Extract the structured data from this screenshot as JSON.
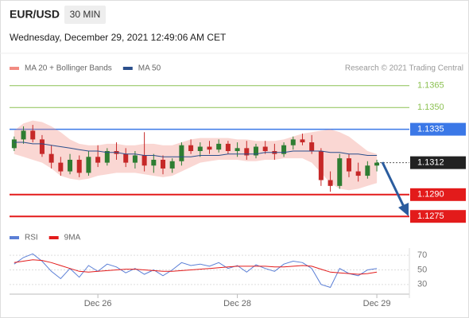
{
  "header": {
    "symbol": "EUR/USD",
    "timeframe": "30 MIN",
    "datetime": "Wednesday, December 29, 2021 12:49:06 AM CET",
    "source": "Research © 2021 Trading Central"
  },
  "chart_data": [
    {
      "type": "candlestick",
      "up_color": "#2e7d32",
      "down_color": "#c62828",
      "ylim": [
        1.1268,
        1.1372
      ],
      "xlim": [
        -0.5,
        42.5
      ],
      "open": [
        1.1322,
        1.1328,
        1.1334,
        1.1328,
        1.1318,
        1.1312,
        1.1306,
        1.1314,
        1.1305,
        1.1316,
        1.1312,
        1.132,
        1.1318,
        1.1312,
        1.1317,
        1.131,
        1.1314,
        1.1308,
        1.1313,
        1.1324,
        1.132,
        1.1323,
        1.1321,
        1.1325,
        1.132,
        1.1322,
        1.1317,
        1.1323,
        1.132,
        1.1318,
        1.1324,
        1.1328,
        1.1326,
        1.132,
        1.13,
        1.1296,
        1.1315,
        1.1306,
        1.1303,
        1.131
      ],
      "high": [
        1.133,
        1.1337,
        1.1338,
        1.1331,
        1.1324,
        1.1316,
        1.1318,
        1.1317,
        1.132,
        1.1324,
        1.1322,
        1.1326,
        1.1322,
        1.132,
        1.1333,
        1.1318,
        1.1317,
        1.1315,
        1.1326,
        1.1328,
        1.1326,
        1.1327,
        1.1328,
        1.1327,
        1.1326,
        1.1327,
        1.1325,
        1.1327,
        1.1325,
        1.1326,
        1.133,
        1.1332,
        1.1331,
        1.1322,
        1.1306,
        1.1318,
        1.1318,
        1.1312,
        1.1313,
        1.1314
      ],
      "low": [
        1.132,
        1.1325,
        1.1326,
        1.1316,
        1.1308,
        1.1303,
        1.1304,
        1.1302,
        1.1303,
        1.1309,
        1.131,
        1.1314,
        1.1309,
        1.1308,
        1.1306,
        1.1305,
        1.1304,
        1.1305,
        1.131,
        1.1318,
        1.1316,
        1.1318,
        1.1319,
        1.1318,
        1.1316,
        1.1314,
        1.1315,
        1.1318,
        1.1314,
        1.1316,
        1.1321,
        1.1324,
        1.1318,
        1.1296,
        1.1292,
        1.1294,
        1.1302,
        1.1299,
        1.1301,
        1.1306
      ],
      "close": [
        1.1328,
        1.1334,
        1.1328,
        1.1318,
        1.1312,
        1.1306,
        1.1314,
        1.1305,
        1.1316,
        1.1312,
        1.132,
        1.1318,
        1.1312,
        1.1317,
        1.131,
        1.1314,
        1.1308,
        1.1313,
        1.1324,
        1.132,
        1.1323,
        1.1321,
        1.1325,
        1.132,
        1.1322,
        1.1317,
        1.1323,
        1.132,
        1.1318,
        1.1324,
        1.1328,
        1.1326,
        1.132,
        1.13,
        1.1296,
        1.1315,
        1.1306,
        1.1303,
        1.131,
        1.1312
      ],
      "series": [
        {
          "name": "MA 20 + Bollinger Bands",
          "color": "#f28b82",
          "upper": [
            1.1334,
            1.1339,
            1.1341,
            1.134,
            1.1337,
            1.1333,
            1.1328,
            1.1325,
            1.1324,
            1.1324,
            1.1325,
            1.1325,
            1.1324,
            1.1324,
            1.1325,
            1.1325,
            1.1324,
            1.1324,
            1.1326,
            1.1328,
            1.1329,
            1.1329,
            1.1329,
            1.1329,
            1.1328,
            1.1328,
            1.1327,
            1.1327,
            1.1327,
            1.1328,
            1.133,
            1.1332,
            1.1333,
            1.1334,
            1.1335,
            1.1333,
            1.133,
            1.1325,
            1.132,
            1.1318
          ],
          "lower": [
            1.1318,
            1.1316,
            1.1314,
            1.1312,
            1.1308,
            1.1303,
            1.1301,
            1.13,
            1.1301,
            1.1303,
            1.1304,
            1.1305,
            1.1305,
            1.1305,
            1.1304,
            1.1303,
            1.1302,
            1.1303,
            1.1306,
            1.1309,
            1.1312,
            1.1313,
            1.1314,
            1.1314,
            1.1314,
            1.1313,
            1.1313,
            1.1314,
            1.1314,
            1.1315,
            1.1315,
            1.1315,
            1.1312,
            1.1305,
            1.1298,
            1.1294,
            1.1293,
            1.1294,
            1.1296,
            1.1298
          ]
        },
        {
          "name": "MA 50",
          "color": "#2b4f8c",
          "values": [
            1.1326,
            1.1326,
            1.1325,
            1.1325,
            1.1324,
            1.1323,
            1.1322,
            1.1321,
            1.132,
            1.132,
            1.1319,
            1.1319,
            1.1318,
            1.1318,
            1.1317,
            1.1317,
            1.1316,
            1.1316,
            1.1316,
            1.1316,
            1.1317,
            1.1317,
            1.1317,
            1.1318,
            1.1318,
            1.1318,
            1.1318,
            1.1319,
            1.1319,
            1.1319,
            1.132,
            1.132,
            1.132,
            1.132,
            1.1319,
            1.1319,
            1.1318,
            1.1318,
            1.1317,
            1.1317
          ]
        }
      ],
      "levels": [
        {
          "value": 1.1365,
          "label": "1.1365",
          "color": "#8cc152",
          "style": "plain"
        },
        {
          "value": 1.135,
          "label": "1.1350",
          "color": "#8cc152",
          "style": "plain"
        },
        {
          "value": 1.1335,
          "label": "1.1335",
          "color": "#3b78e7",
          "style": "box"
        },
        {
          "value": 1.1312,
          "label": "1.1312",
          "color": "#222222",
          "style": "last"
        },
        {
          "value": 1.129,
          "label": "1.1290",
          "color": "#e31b1b",
          "style": "box"
        },
        {
          "value": 1.1275,
          "label": "1.1275",
          "color": "#e31b1b",
          "style": "box"
        }
      ]
    },
    {
      "type": "line",
      "ylim": [
        20,
        80
      ],
      "yticks": [
        70,
        50,
        30
      ],
      "xlim": [
        -0.5,
        42.5
      ],
      "xticks": [
        {
          "value": 9,
          "label": "Dec 26"
        },
        {
          "value": 24,
          "label": "Dec 28"
        },
        {
          "value": 39,
          "label": "Dec 29"
        }
      ],
      "series": [
        {
          "name": "RSI",
          "color": "#5b7fd6",
          "values": [
            58,
            67,
            72,
            62,
            48,
            38,
            52,
            40,
            56,
            48,
            58,
            54,
            46,
            52,
            44,
            50,
            42,
            50,
            60,
            56,
            58,
            55,
            60,
            52,
            56,
            47,
            57,
            52,
            48,
            58,
            62,
            60,
            52,
            30,
            26,
            52,
            45,
            42,
            50,
            52
          ]
        },
        {
          "name": "9MA",
          "color": "#e31b1b",
          "values": [
            60,
            62,
            64,
            63,
            60,
            56,
            52,
            48,
            47,
            48,
            49,
            50,
            51,
            51,
            50,
            49,
            48,
            48,
            49,
            50,
            51,
            52,
            53,
            54,
            55,
            55,
            55,
            55,
            54,
            54,
            55,
            56,
            55,
            51,
            47,
            46,
            45,
            44,
            45,
            47
          ]
        }
      ]
    }
  ]
}
